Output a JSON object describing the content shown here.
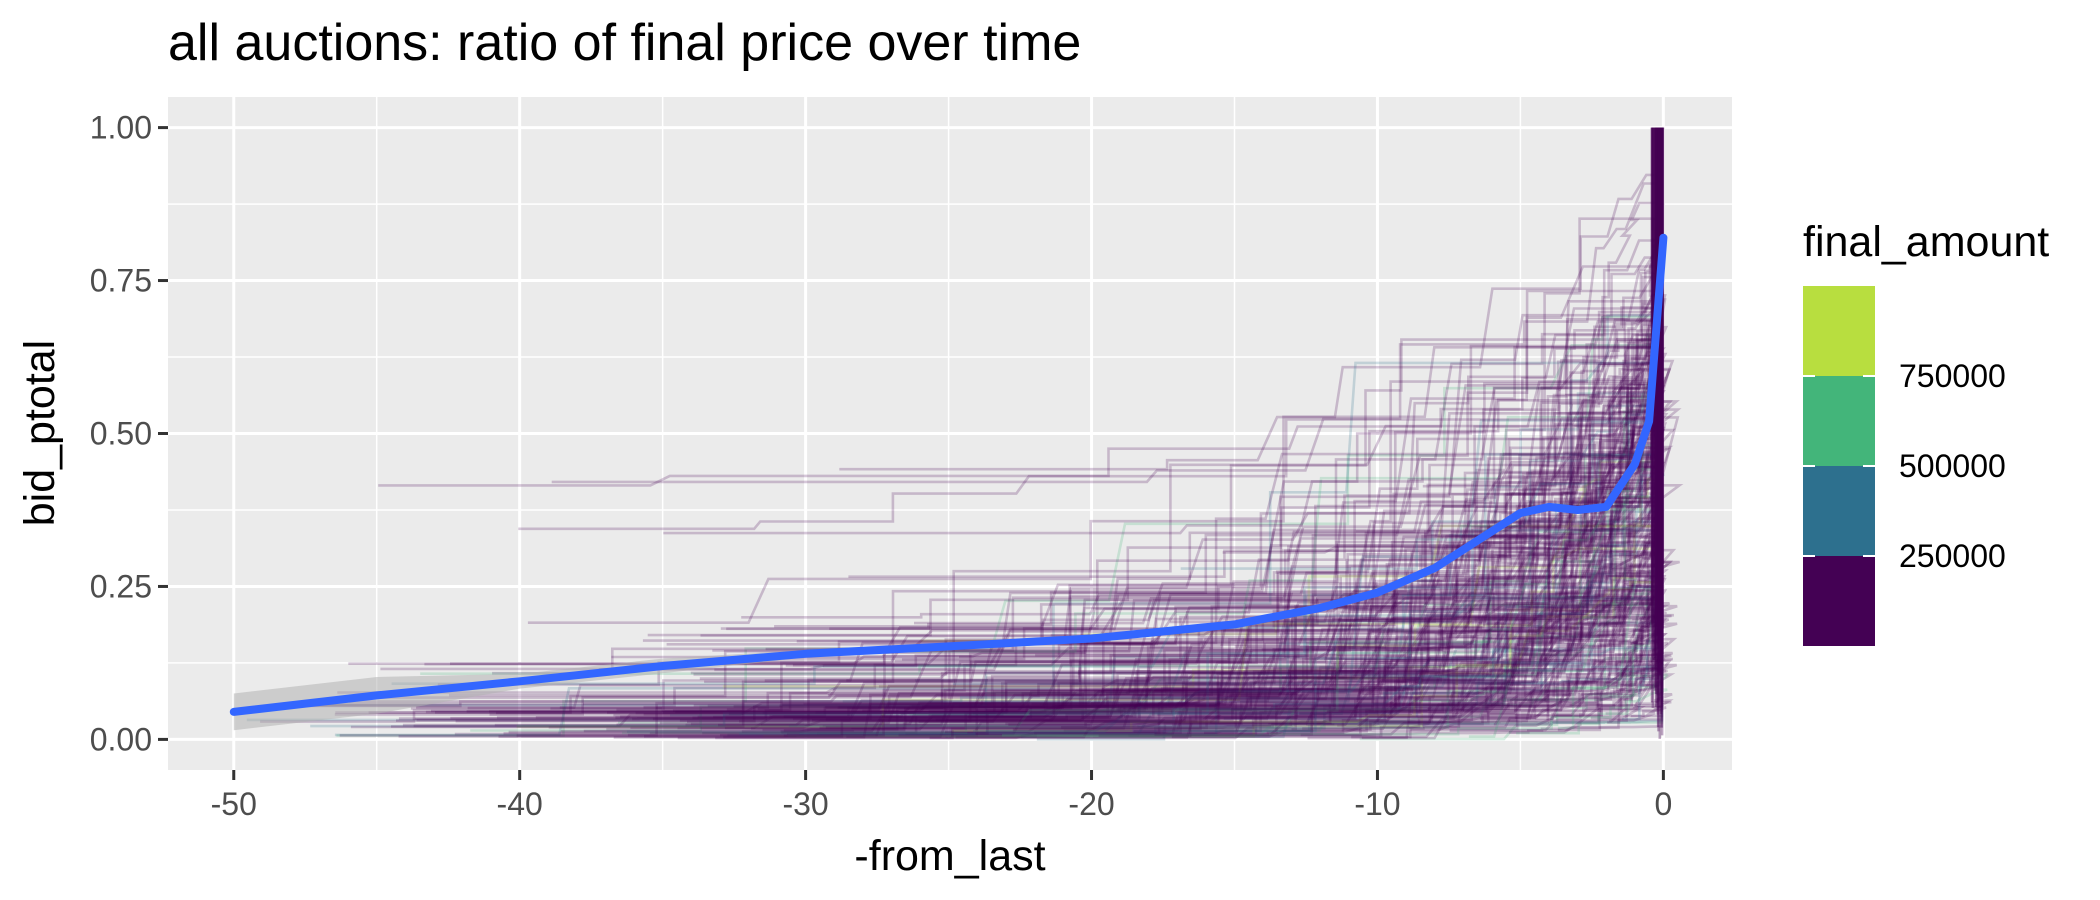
{
  "chart_data": {
    "type": "line",
    "title": "all auctions: ratio of final price over time",
    "xlabel": "-from_last",
    "ylabel": "bid_ptotal",
    "xlim": [
      -52.3,
      2.4
    ],
    "ylim": [
      -0.05,
      1.05
    ],
    "x_ticks": [
      -50,
      -40,
      -30,
      -20,
      -10,
      0
    ],
    "x_tick_labels": [
      "-50",
      "-40",
      "-30",
      "-20",
      "-10",
      "0"
    ],
    "y_ticks": [
      0,
      0.25,
      0.5,
      0.75,
      1.0
    ],
    "y_tick_labels": [
      "0.00",
      "0.25",
      "0.50",
      "0.75",
      "1.00"
    ],
    "grid": true,
    "legend": {
      "title": "final_amount",
      "position": "right",
      "breaks": [
        250000,
        500000,
        750000
      ],
      "labels": [
        "250000",
        "500000",
        "750000"
      ],
      "colors": [
        "#440154",
        "#2d708e",
        "#43b57a",
        "#b8de3f"
      ]
    },
    "smooth_series": {
      "color": "#3366ff",
      "x": [
        -50,
        -45,
        -40,
        -35,
        -30,
        -25,
        -20,
        -15,
        -12,
        -10,
        -8,
        -6,
        -5,
        -4,
        -3,
        -2,
        -1,
        -0.5,
        0
      ],
      "y": [
        0.045,
        0.072,
        0.095,
        0.12,
        0.14,
        0.152,
        0.165,
        0.188,
        0.215,
        0.24,
        0.28,
        0.34,
        0.37,
        0.38,
        0.375,
        0.38,
        0.45,
        0.52,
        0.82
      ]
    },
    "line_colors": {
      "individual_auctions": "#440154",
      "panel_background": "#ebebeb",
      "grid": "#ffffff",
      "ribbon": "#999999"
    }
  }
}
